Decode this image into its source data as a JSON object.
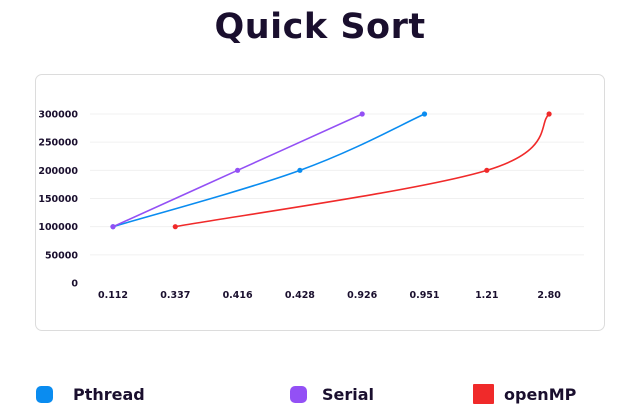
{
  "title": "Quick Sort",
  "colors": {
    "pthread": "#0a8cf0",
    "serial": "#9350f5",
    "openmp": "#f02a2a"
  },
  "legend": [
    {
      "name": "Pthread",
      "color": "#0a8cf0",
      "shape": "rounded-square"
    },
    {
      "name": "Serial",
      "color": "#9350f5",
      "shape": "rounded-square"
    },
    {
      "name": "openMP",
      "color": "#f02a2a",
      "shape": "square"
    }
  ],
  "chart_data": {
    "type": "line",
    "title": "Quick Sort",
    "xlabel": "",
    "ylabel": "",
    "categories": [
      "0.112",
      "0.337",
      "0.416",
      "0.428",
      "0.926",
      "0.951",
      "1.21",
      "2.80"
    ],
    "yticks": [
      "0",
      "50000",
      "100000",
      "150000",
      "200000",
      "250000",
      "300000"
    ],
    "ylim": [
      0,
      300000
    ],
    "grid": true,
    "legend_position": "bottom",
    "curve": "smooth",
    "series": [
      {
        "name": "Pthread",
        "color": "#0a8cf0",
        "points": [
          {
            "x": "0.112",
            "y": 100000
          },
          {
            "x": "0.428",
            "y": 200000
          },
          {
            "x": "0.951",
            "y": 300000
          }
        ]
      },
      {
        "name": "Serial",
        "color": "#9350f5",
        "points": [
          {
            "x": "0.112",
            "y": 100000
          },
          {
            "x": "0.416",
            "y": 200000
          },
          {
            "x": "0.926",
            "y": 300000
          }
        ]
      },
      {
        "name": "openMP",
        "color": "#f02a2a",
        "points": [
          {
            "x": "0.337",
            "y": 100000
          },
          {
            "x": "1.21",
            "y": 200000
          },
          {
            "x": "2.80",
            "y": 300000
          }
        ]
      }
    ]
  }
}
